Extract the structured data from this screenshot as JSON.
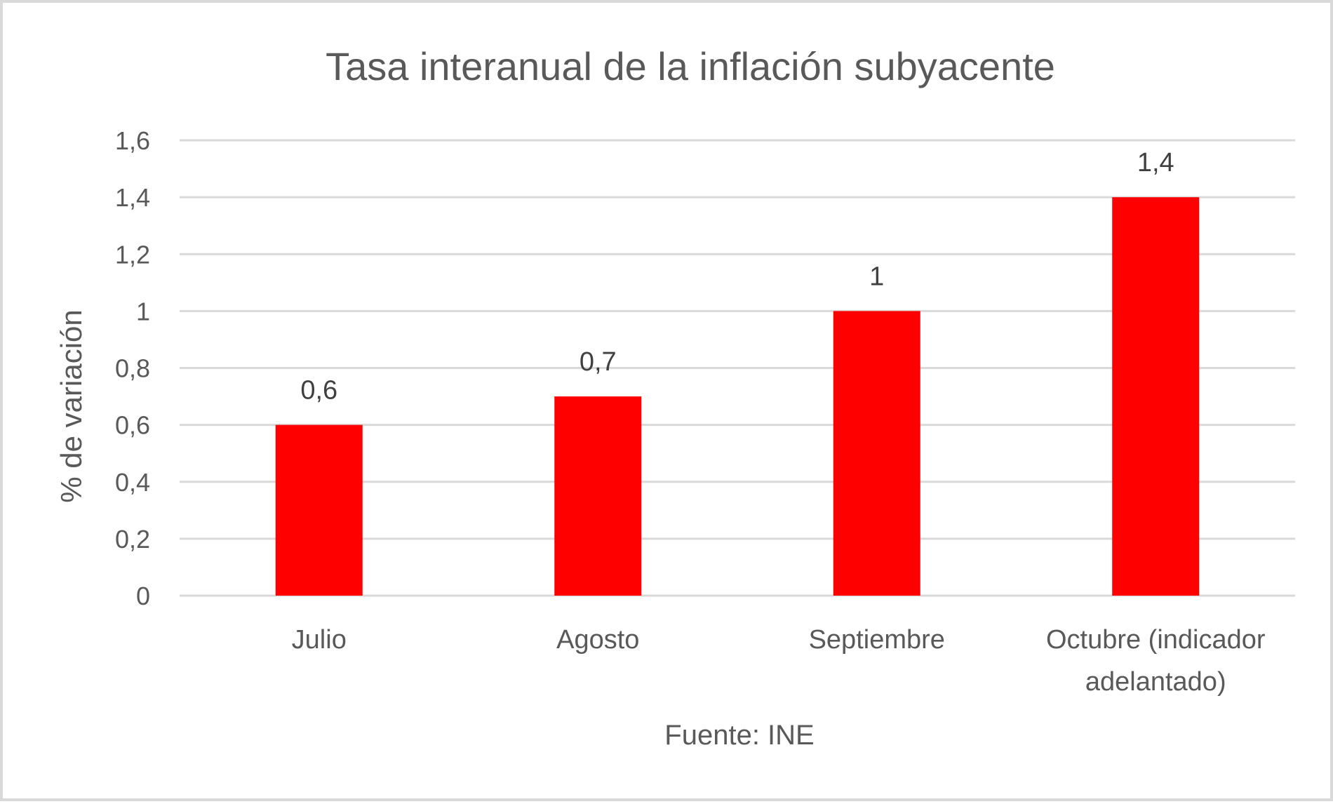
{
  "chart_data": {
    "type": "bar",
    "title": "Tasa interanual de la inflación subyacente",
    "xlabel": "Fuente: INE",
    "ylabel": "% de variación",
    "categories": [
      [
        "Julio"
      ],
      [
        "Agosto"
      ],
      [
        "Septiembre"
      ],
      [
        "Octubre (indicador",
        "adelantado)"
      ]
    ],
    "values": [
      0.6,
      0.7,
      1.0,
      1.4
    ],
    "value_labels": [
      "0,6",
      "0,7",
      "1",
      "1,4"
    ],
    "ylim": [
      0,
      1.6
    ],
    "yticks": [
      0,
      0.2,
      0.4,
      0.6,
      0.8,
      1.0,
      1.2,
      1.4,
      1.6
    ],
    "ytick_labels": [
      "0",
      "0,2",
      "0,4",
      "0,6",
      "0,8",
      "1",
      "1,2",
      "1,4",
      "1,6"
    ],
    "grid": true,
    "bar_color": "#ff0000",
    "grid_color": "#d9d9d9",
    "text_color": "#595959"
  }
}
